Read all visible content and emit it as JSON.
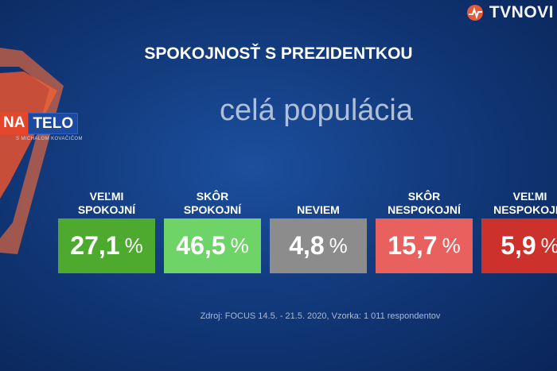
{
  "brand": {
    "name": "TVNOVI"
  },
  "show": {
    "logo_left": "NA",
    "logo_right": "TELO",
    "subtitle": "S MICHALOM KOVAČIČOM"
  },
  "chart_data": {
    "type": "bar",
    "title": "SPOKOJNOSŤ S PREZIDENTKOU",
    "subtitle": "celá populácia",
    "unit": "%",
    "categories": [
      {
        "line1": "VEĽMI",
        "line2": "SPOKOJNÍ"
      },
      {
        "line1": "SKÔR",
        "line2": "SPOKOJNÍ"
      },
      {
        "line1": "",
        "line2": "NEVIEM"
      },
      {
        "line1": "SKÔR",
        "line2": "NESPOKOJNÍ"
      },
      {
        "line1": "VEĽMI",
        "line2": "NESPOKOJNÍ"
      }
    ],
    "values": [
      27.1,
      46.5,
      4.8,
      15.7,
      5.9
    ],
    "value_labels": [
      "27,1",
      "46,5",
      "4,8",
      "15,7",
      "5,9"
    ],
    "colors": [
      "#4eaa2f",
      "#6fd468",
      "#8c8c8c",
      "#e8615e",
      "#cc312b"
    ]
  },
  "source": "Zdroj: FOCUS 14.5. - 21.5. 2020, Vzorka: 1 011 respondentov"
}
